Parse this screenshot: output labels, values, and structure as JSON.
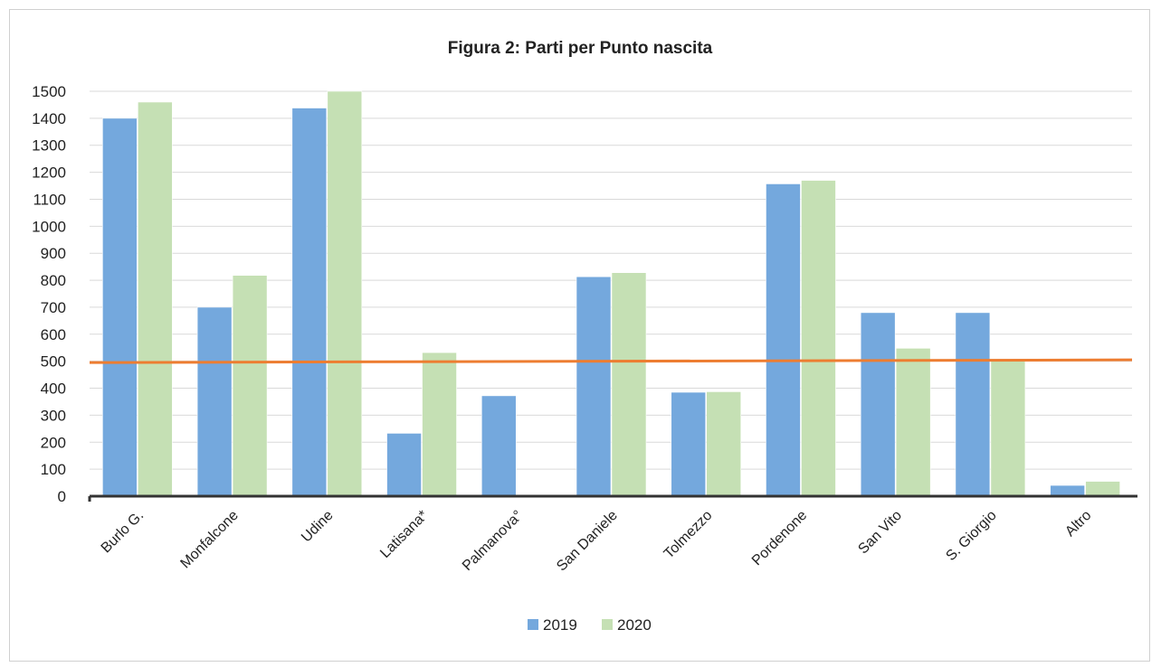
{
  "chart_data": {
    "type": "bar",
    "title": "Figura 2: Parti per Punto nascita",
    "xlabel": "",
    "ylabel": "",
    "categories": [
      "Burlo G.",
      "Monfalcone",
      "Udine",
      "Latisana*",
      "Palmanova°",
      "San Daniele",
      "Tolmezzo",
      "Pordenone",
      "San Vito",
      "S. Giorgio",
      "Altro"
    ],
    "series": [
      {
        "name": "2019",
        "color": "#74a8dd",
        "values": [
          1400,
          700,
          1438,
          233,
          372,
          813,
          385,
          1157,
          680,
          680,
          40
        ]
      },
      {
        "name": "2020",
        "color": "#c5e0b4",
        "values": [
          1460,
          818,
          1500,
          532,
          null,
          828,
          387,
          1170,
          548,
          500,
          55
        ]
      }
    ],
    "reference_line": {
      "value": 500,
      "color": "#ed7d31"
    },
    "ylim": [
      0,
      1500
    ],
    "yticks": [
      0,
      100,
      200,
      300,
      400,
      500,
      600,
      700,
      800,
      900,
      1000,
      1100,
      1200,
      1300,
      1400,
      1500
    ],
    "grid": true,
    "legend_position": "bottom"
  }
}
